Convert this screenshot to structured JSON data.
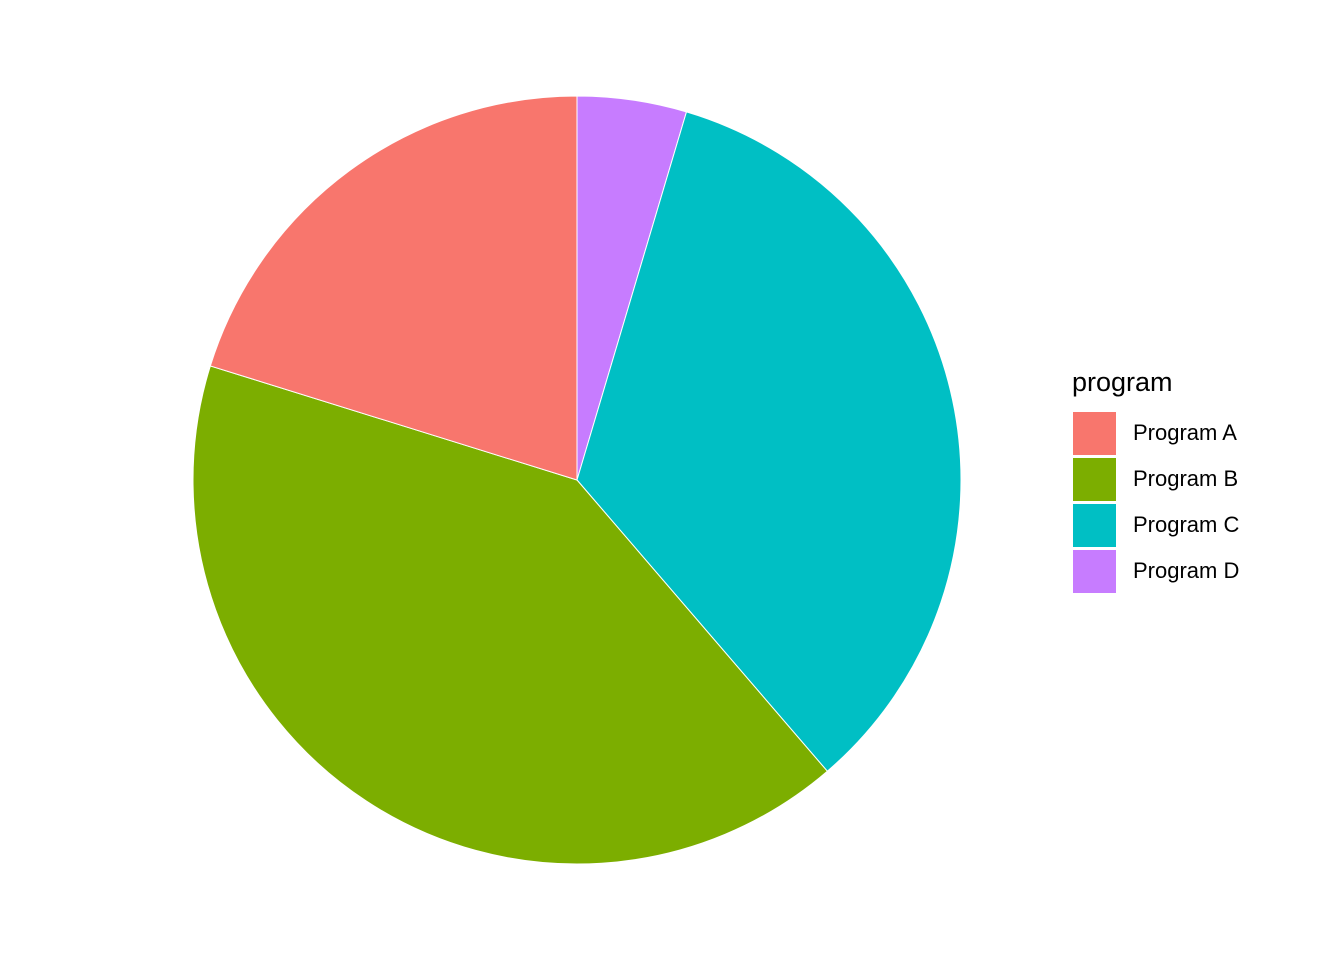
{
  "chart_data": {
    "type": "pie",
    "start_angle": "12 o'clock",
    "direction": "clockwise",
    "legend": {
      "title": "program",
      "position": "right"
    },
    "slices": [
      {
        "label": "Program D",
        "value": 4.6,
        "color": "#C77CFF"
      },
      {
        "label": "Program C",
        "value": 34.1,
        "color": "#00BFC4"
      },
      {
        "label": "Program B",
        "value": 41.1,
        "color": "#7CAE00"
      },
      {
        "label": "Program A",
        "value": 20.2,
        "color": "#F8766D"
      }
    ],
    "legend_items": [
      {
        "label": "Program A",
        "color": "#F8766D"
      },
      {
        "label": "Program B",
        "color": "#7CAE00"
      },
      {
        "label": "Program C",
        "color": "#00BFC4"
      },
      {
        "label": "Program D",
        "color": "#C77CFF"
      }
    ]
  }
}
